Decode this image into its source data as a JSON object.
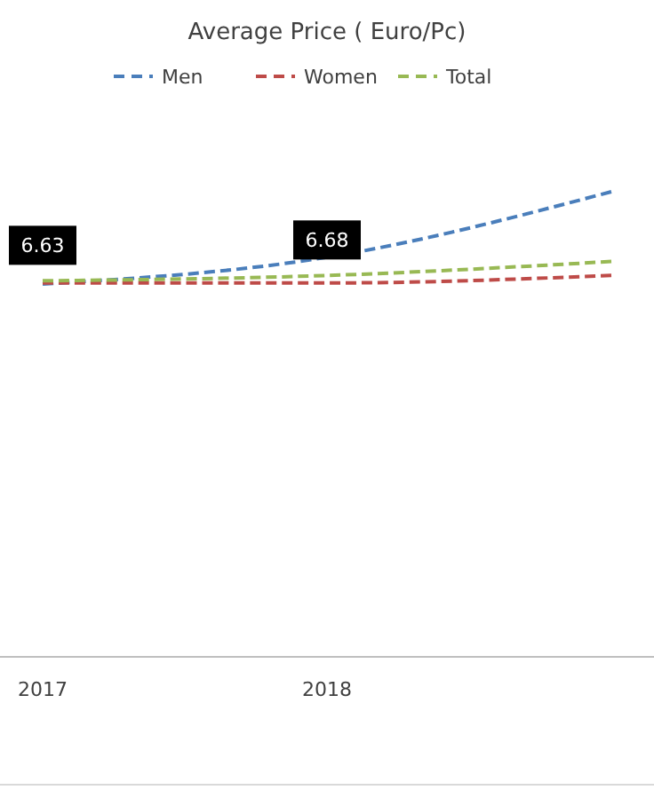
{
  "chart_data": {
    "type": "line",
    "title": "Average Price ( Euro/Pc)",
    "categories": [
      "2017",
      "2018",
      null
    ],
    "legend": "top",
    "line_style": "dashed",
    "series": [
      {
        "name": "Men",
        "color": "#4a7ebb",
        "values": [
          6.6,
          6.85,
          7.46
        ]
      },
      {
        "name": "Women",
        "color": "#be4b48",
        "values": [
          6.61,
          6.61,
          6.68
        ]
      },
      {
        "name": "Total",
        "color": "#98b954",
        "values": [
          6.63,
          6.68,
          6.81
        ],
        "value_labels": [
          "6.63",
          "6.68",
          null
        ]
      }
    ]
  }
}
